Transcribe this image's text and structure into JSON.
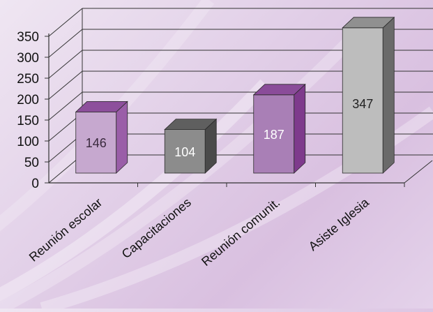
{
  "chart_data": {
    "type": "bar",
    "title": "",
    "xlabel": "",
    "ylabel": "",
    "categories": [
      "Reunión escolar",
      "Capacitaciones",
      "Reunión comunit.",
      "Asiste Iglesia"
    ],
    "values": [
      146,
      104,
      187,
      347
    ],
    "data_labels": [
      "146",
      "104",
      "187",
      "347"
    ],
    "ylim": [
      0,
      350
    ],
    "yticks": [
      "0",
      "50",
      "100",
      "150",
      "200",
      "250",
      "300",
      "350"
    ],
    "grid": true,
    "three_d": true,
    "legend": "none",
    "colors": {
      "bars": [
        {
          "front": "#c6a8cf",
          "side": "#9a5ea8",
          "top": "#8d4f9c",
          "label": "#3a2a3e"
        },
        {
          "front": "#8c8c8c",
          "side": "#4a4a4a",
          "top": "#5f5f5f",
          "label": "#ffffff"
        },
        {
          "front": "#a97fb6",
          "side": "#7e3a8c",
          "top": "#8a4c99",
          "label": "#ffffff"
        },
        {
          "front": "#bdbdbd",
          "side": "#6a6a6a",
          "top": "#909090",
          "label": "#222222"
        }
      ],
      "grid": "#333333",
      "text": "#111111"
    }
  }
}
